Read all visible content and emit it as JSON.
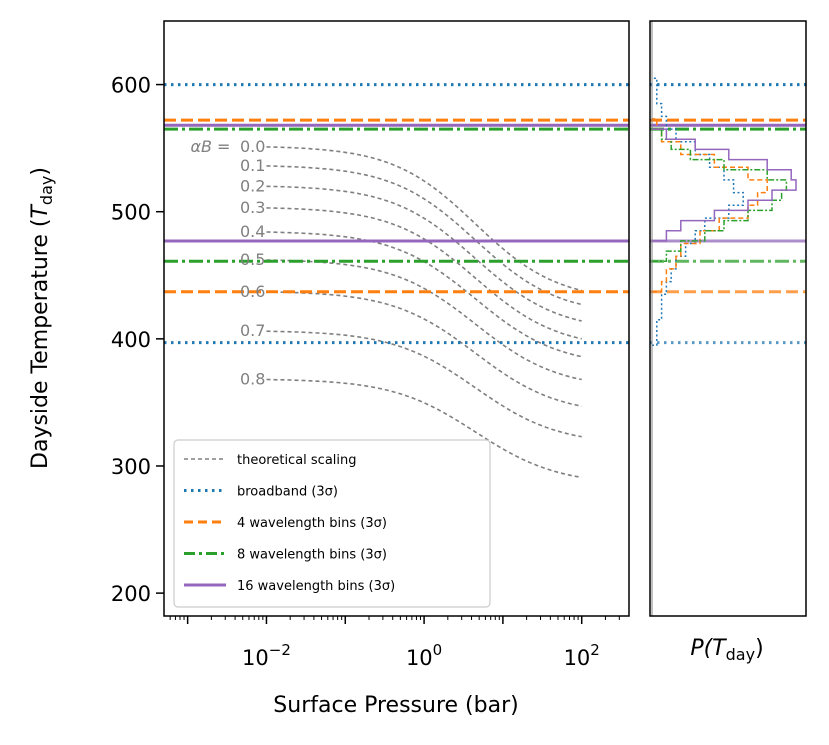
{
  "chart_data": {
    "type": "line",
    "main_panel": {
      "xlabel": "Surface Pressure (bar)",
      "ylabel": "Dayside Temperature (T_day)",
      "ylabel_prefix": "Dayside Temperature (",
      "ylabel_var": "T",
      "ylabel_sub": "day",
      "ylabel_suffix": ")",
      "xscale": "log",
      "xlim_log10": [
        -3.3,
        2.6
      ],
      "ylim": [
        182,
        650
      ],
      "yticks": [
        "200",
        "300",
        "400",
        "500",
        "600"
      ],
      "ytick_values": [
        200,
        300,
        400,
        500,
        600
      ],
      "xticks": [
        {
          "base": "10",
          "exp": "−2",
          "log10": -2
        },
        {
          "base": "10",
          "exp": "0",
          "log10": 0
        },
        {
          "base": "10",
          "exp": "2",
          "log10": 2
        }
      ],
      "curve_label_prefix": "αB = ",
      "theoretical_curves": [
        {
          "alpha": "0.0",
          "t_low": 551,
          "t_high": 438
        },
        {
          "alpha": "0.1",
          "t_low": 536,
          "t_high": 427
        },
        {
          "alpha": "0.2",
          "t_low": 520,
          "t_high": 414
        },
        {
          "alpha": "0.3",
          "t_low": 503,
          "t_high": 400
        },
        {
          "alpha": "0.4",
          "t_low": 484,
          "t_high": 386
        },
        {
          "alpha": "0.5",
          "t_low": 462,
          "t_high": 368
        },
        {
          "alpha": "0.6",
          "t_low": 437,
          "t_high": 347
        },
        {
          "alpha": "0.7",
          "t_low": 406,
          "t_high": 323
        },
        {
          "alpha": "0.8",
          "t_low": 368,
          "t_high": 291
        }
      ],
      "curve_range_log10": [
        -2.0,
        2.0
      ],
      "curve_transition_log10": 0.65
    },
    "bounds": [
      {
        "name": "broadband (3σ)",
        "color": "#1f77b4",
        "style": "dotted",
        "lower": 397,
        "upper": 600
      },
      {
        "name": "4 wavelength bins (3σ)",
        "color": "#ff7f0e",
        "style": "dashed",
        "lower": 437,
        "upper": 572
      },
      {
        "name": "8 wavelength bins (3σ)",
        "color": "#2ca02c",
        "style": "dashdot",
        "lower": 461,
        "upper": 565
      },
      {
        "name": "16 wavelength bins (3σ)",
        "color": "#9467bd",
        "style": "solid",
        "lower": 477,
        "upper": 568
      }
    ],
    "legend": {
      "placement": "lower-left",
      "entries": [
        {
          "label": "theoretical scaling",
          "color": "#808080",
          "style": "dashed-thin"
        },
        {
          "label": "broadband (3σ)",
          "color": "#1f77b4",
          "style": "dotted"
        },
        {
          "label": "4 wavelength bins (3σ)",
          "color": "#ff7f0e",
          "style": "dashed"
        },
        {
          "label": "8 wavelength bins (3σ)",
          "color": "#2ca02c",
          "style": "dashdot"
        },
        {
          "label": "16 wavelength bins (3σ)",
          "color": "#9467bd",
          "style": "solid"
        }
      ]
    },
    "side_panel": {
      "xlabel_var": "P(T",
      "xlabel_sub": "day",
      "xlabel_suffix": ")",
      "type": "step-histogram",
      "series": [
        {
          "name": "broadband",
          "color": "#1f77b4",
          "style": "dotted",
          "bins": [
            [
              395,
              1
            ],
            [
              405,
              1
            ],
            [
              415,
              2
            ],
            [
              425,
              2
            ],
            [
              435,
              3
            ],
            [
              445,
              4
            ],
            [
              455,
              5
            ],
            [
              465,
              7
            ],
            [
              475,
              9
            ],
            [
              485,
              11
            ],
            [
              495,
              16
            ],
            [
              505,
              19
            ],
            [
              515,
              17
            ],
            [
              525,
              15
            ],
            [
              535,
              12
            ],
            [
              545,
              9
            ],
            [
              555,
              5
            ],
            [
              565,
              3
            ],
            [
              575,
              2
            ],
            [
              585,
              1
            ],
            [
              595,
              1
            ]
          ]
        },
        {
          "name": "4 wavelength bins",
          "color": "#ff7f0e",
          "style": "dashed",
          "bins": [
            [
              437,
              2
            ],
            [
              445,
              3
            ],
            [
              455,
              5
            ],
            [
              465,
              6
            ],
            [
              475,
              10
            ],
            [
              485,
              14
            ],
            [
              495,
              20
            ],
            [
              505,
              22
            ],
            [
              515,
              24
            ],
            [
              525,
              20
            ],
            [
              535,
              13
            ],
            [
              545,
              6
            ],
            [
              555,
              2
            ],
            [
              565,
              1
            ]
          ]
        },
        {
          "name": "8 wavelength bins",
          "color": "#2ca02c",
          "style": "dashdot",
          "bins": [
            [
              461,
              3
            ],
            [
              469,
              6
            ],
            [
              477,
              11
            ],
            [
              485,
              15
            ],
            [
              493,
              20
            ],
            [
              501,
              25
            ],
            [
              509,
              27
            ],
            [
              517,
              28
            ],
            [
              525,
              24
            ],
            [
              533,
              15
            ],
            [
              541,
              8
            ],
            [
              549,
              4
            ],
            [
              557,
              2
            ]
          ]
        },
        {
          "name": "16 wavelength bins",
          "color": "#9467bd",
          "style": "solid",
          "bins": [
            [
              477,
              3
            ],
            [
              485,
              6
            ],
            [
              493,
              13
            ],
            [
              501,
              20
            ],
            [
              509,
              25
            ],
            [
              517,
              30
            ],
            [
              525,
              29
            ],
            [
              533,
              24
            ],
            [
              541,
              16
            ],
            [
              549,
              9
            ],
            [
              557,
              3
            ]
          ]
        }
      ]
    }
  }
}
